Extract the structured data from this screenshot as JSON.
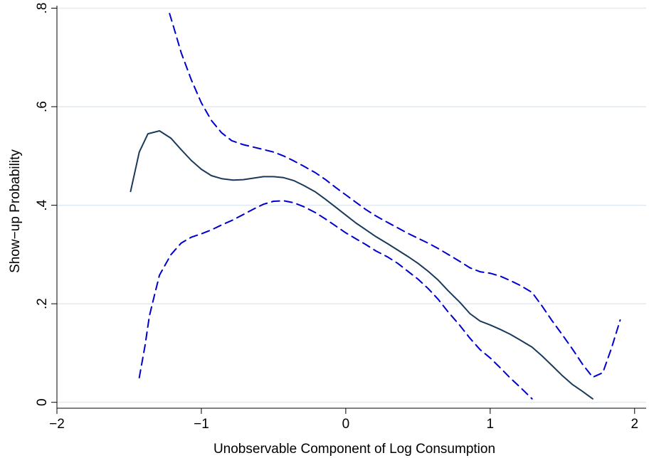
{
  "chart_data": {
    "type": "line",
    "xlabel": "Unobservable Component of Log Consumption",
    "ylabel": "Show−up Probability",
    "xlim": [
      -2.0,
      2.08
    ],
    "ylim": [
      -0.012,
      0.805
    ],
    "xticks": [
      {
        "value": -2,
        "label": "−2"
      },
      {
        "value": -1,
        "label": "−1"
      },
      {
        "value": 0,
        "label": "0"
      },
      {
        "value": 1,
        "label": "1"
      },
      {
        "value": 2,
        "label": "2"
      }
    ],
    "yticks": [
      {
        "value": 0,
        "label": "0"
      },
      {
        "value": 0.2,
        "label": ".2"
      },
      {
        "value": 0.4,
        "label": ".4"
      },
      {
        "value": 0.6,
        "label": ".6"
      },
      {
        "value": 0.8,
        "label": ".8"
      }
    ],
    "grid": "horizontal",
    "colors": {
      "estimate": "#1a3a5c",
      "bands": "#0000cc",
      "grid": "#e1eaf0",
      "axis": "#000000"
    },
    "series": [
      {
        "style": "solid",
        "points": [
          [
            -1.49,
            0.428
          ],
          [
            -1.43,
            0.508
          ],
          [
            -1.37,
            0.545
          ],
          [
            -1.29,
            0.551
          ],
          [
            -1.21,
            0.536
          ],
          [
            -1.14,
            0.513
          ],
          [
            -1.07,
            0.491
          ],
          [
            -1.0,
            0.473
          ],
          [
            -0.93,
            0.46
          ],
          [
            -0.86,
            0.454
          ],
          [
            -0.78,
            0.451
          ],
          [
            -0.71,
            0.452
          ],
          [
            -0.64,
            0.455
          ],
          [
            -0.57,
            0.458
          ],
          [
            -0.5,
            0.458
          ],
          [
            -0.43,
            0.456
          ],
          [
            -0.36,
            0.45
          ],
          [
            -0.29,
            0.44
          ],
          [
            -0.21,
            0.427
          ],
          [
            -0.14,
            0.412
          ],
          [
            -0.07,
            0.396
          ],
          [
            0.0,
            0.38
          ],
          [
            0.07,
            0.364
          ],
          [
            0.14,
            0.35
          ],
          [
            0.21,
            0.336
          ],
          [
            0.29,
            0.322
          ],
          [
            0.36,
            0.309
          ],
          [
            0.43,
            0.296
          ],
          [
            0.5,
            0.282
          ],
          [
            0.57,
            0.266
          ],
          [
            0.64,
            0.248
          ],
          [
            0.71,
            0.226
          ],
          [
            0.79,
            0.203
          ],
          [
            0.86,
            0.18
          ],
          [
            0.93,
            0.165
          ],
          [
            1.0,
            0.157
          ],
          [
            1.07,
            0.148
          ],
          [
            1.14,
            0.138
          ],
          [
            1.21,
            0.126
          ],
          [
            1.29,
            0.112
          ],
          [
            1.36,
            0.094
          ],
          [
            1.43,
            0.074
          ],
          [
            1.5,
            0.054
          ],
          [
            1.57,
            0.036
          ],
          [
            1.64,
            0.022
          ],
          [
            1.71,
            0.007
          ]
        ]
      },
      {
        "style": "dashed",
        "points": [
          [
            -1.22,
            0.789
          ],
          [
            -1.18,
            0.75
          ],
          [
            -1.14,
            0.71
          ],
          [
            -1.07,
            0.655
          ],
          [
            -1.0,
            0.608
          ],
          [
            -0.93,
            0.572
          ],
          [
            -0.86,
            0.547
          ],
          [
            -0.79,
            0.531
          ],
          [
            -0.71,
            0.523
          ],
          [
            -0.64,
            0.518
          ],
          [
            -0.57,
            0.513
          ],
          [
            -0.5,
            0.508
          ],
          [
            -0.43,
            0.5
          ],
          [
            -0.36,
            0.49
          ],
          [
            -0.29,
            0.479
          ],
          [
            -0.21,
            0.466
          ],
          [
            -0.14,
            0.452
          ],
          [
            -0.07,
            0.436
          ],
          [
            0.0,
            0.421
          ],
          [
            0.07,
            0.406
          ],
          [
            0.14,
            0.391
          ],
          [
            0.21,
            0.378
          ],
          [
            0.29,
            0.365
          ],
          [
            0.36,
            0.354
          ],
          [
            0.43,
            0.343
          ],
          [
            0.5,
            0.333
          ],
          [
            0.57,
            0.323
          ],
          [
            0.64,
            0.312
          ],
          [
            0.71,
            0.3
          ],
          [
            0.79,
            0.286
          ],
          [
            0.86,
            0.273
          ],
          [
            0.93,
            0.265
          ],
          [
            1.0,
            0.262
          ],
          [
            1.07,
            0.256
          ],
          [
            1.14,
            0.247
          ],
          [
            1.21,
            0.237
          ],
          [
            1.29,
            0.223
          ],
          [
            1.36,
            0.195
          ],
          [
            1.43,
            0.165
          ],
          [
            1.5,
            0.137
          ],
          [
            1.57,
            0.108
          ],
          [
            1.64,
            0.077
          ],
          [
            1.71,
            0.051
          ],
          [
            1.78,
            0.06
          ],
          [
            1.84,
            0.11
          ],
          [
            1.9,
            0.167
          ]
        ]
      },
      {
        "style": "dashed",
        "points": [
          [
            -1.43,
            0.05
          ],
          [
            -1.39,
            0.115
          ],
          [
            -1.36,
            0.175
          ],
          [
            -1.32,
            0.223
          ],
          [
            -1.29,
            0.258
          ],
          [
            -1.21,
            0.3
          ],
          [
            -1.14,
            0.323
          ],
          [
            -1.07,
            0.335
          ],
          [
            -1.0,
            0.342
          ],
          [
            -0.93,
            0.35
          ],
          [
            -0.86,
            0.36
          ],
          [
            -0.79,
            0.369
          ],
          [
            -0.71,
            0.381
          ],
          [
            -0.64,
            0.392
          ],
          [
            -0.57,
            0.402
          ],
          [
            -0.5,
            0.408
          ],
          [
            -0.43,
            0.409
          ],
          [
            -0.36,
            0.405
          ],
          [
            -0.29,
            0.397
          ],
          [
            -0.21,
            0.385
          ],
          [
            -0.14,
            0.372
          ],
          [
            -0.07,
            0.358
          ],
          [
            0.0,
            0.344
          ],
          [
            0.07,
            0.332
          ],
          [
            0.14,
            0.32
          ],
          [
            0.21,
            0.307
          ],
          [
            0.29,
            0.295
          ],
          [
            0.36,
            0.282
          ],
          [
            0.43,
            0.266
          ],
          [
            0.5,
            0.25
          ],
          [
            0.57,
            0.231
          ],
          [
            0.64,
            0.209
          ],
          [
            0.71,
            0.183
          ],
          [
            0.79,
            0.156
          ],
          [
            0.86,
            0.13
          ],
          [
            0.93,
            0.107
          ],
          [
            1.0,
            0.09
          ],
          [
            1.07,
            0.07
          ],
          [
            1.14,
            0.049
          ],
          [
            1.21,
            0.03
          ],
          [
            1.29,
            0.007
          ]
        ]
      }
    ]
  }
}
